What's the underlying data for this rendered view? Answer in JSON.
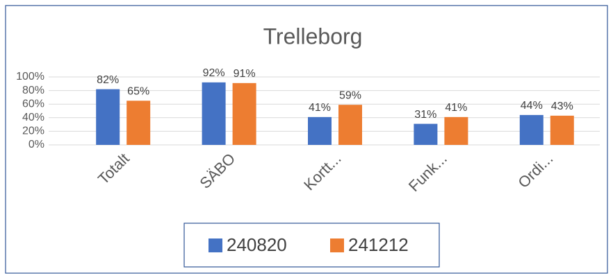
{
  "chart_data": {
    "type": "bar",
    "title": "Trelleborg",
    "categories": [
      "Totalt",
      "SÄBO",
      "Kortt...",
      "Funk...",
      "Ordi..."
    ],
    "series": [
      {
        "name": "240820",
        "color": "#4472c4",
        "values": [
          82,
          92,
          41,
          31,
          44
        ],
        "value_labels": [
          "82%",
          "92%",
          "41%",
          "31%",
          "44%"
        ]
      },
      {
        "name": "241212",
        "color": "#ed7d31",
        "values": [
          65,
          91,
          59,
          41,
          43
        ],
        "value_labels": [
          "65%",
          "91%",
          "59%",
          "41%",
          "43%"
        ]
      }
    ],
    "ylim": [
      0,
      100
    ],
    "yticks": [
      {
        "value": 0,
        "label": "0%"
      },
      {
        "value": 20,
        "label": "20%"
      },
      {
        "value": 40,
        "label": "40%"
      },
      {
        "value": 60,
        "label": "60%"
      },
      {
        "value": 80,
        "label": "80%"
      },
      {
        "value": 100,
        "label": "100%"
      }
    ],
    "grid": true,
    "legend": "bottom"
  }
}
